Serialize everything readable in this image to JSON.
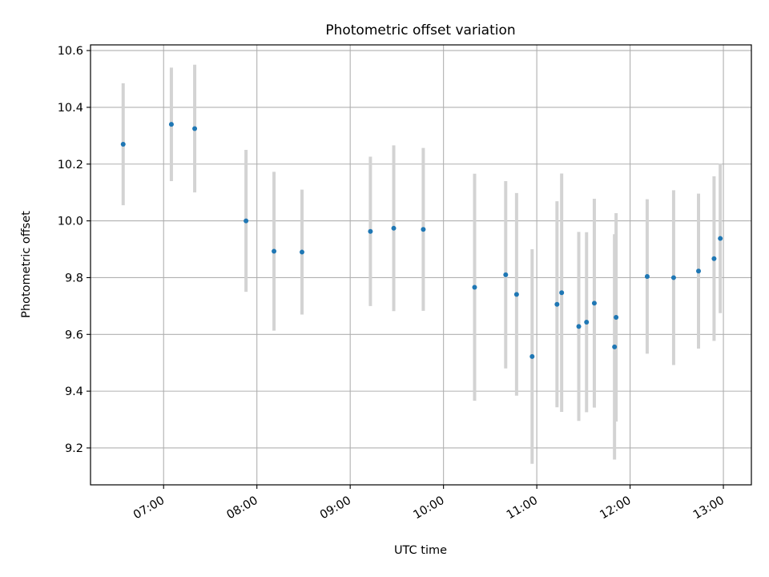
{
  "chart_data": {
    "type": "scatter",
    "title": "Photometric offset variation",
    "xlabel": "UTC time",
    "ylabel": "Photometric offset",
    "x_tick_labels": [
      "07:00",
      "08:00",
      "09:00",
      "10:00",
      "11:00",
      "12:00",
      "13:00"
    ],
    "x_tick_values": [
      "07:00",
      "08:00",
      "09:00",
      "10:00",
      "11:00",
      "12:00",
      "13:00"
    ],
    "y_tick_labels": [
      "9.2",
      "9.4",
      "9.6",
      "9.8",
      "10.0",
      "10.2",
      "10.4",
      "10.6"
    ],
    "xlim": [
      "06:13",
      "13:18"
    ],
    "ylim": [
      9.07,
      10.62
    ],
    "grid": true,
    "colors": {
      "point": "#1f77b4",
      "errorbar": "#d3d3d3",
      "grid": "#b0b0b0"
    },
    "points": [
      {
        "x": "06:34",
        "y": 10.27,
        "err": 0.215
      },
      {
        "x": "07:05",
        "y": 10.34,
        "err": 0.2
      },
      {
        "x": "07:20",
        "y": 10.325,
        "err": 0.225
      },
      {
        "x": "07:53",
        "y": 10.0,
        "err": 0.25
      },
      {
        "x": "08:11",
        "y": 9.893,
        "err": 0.28
      },
      {
        "x": "08:29",
        "y": 9.89,
        "err": 0.22
      },
      {
        "x": "09:13",
        "y": 9.963,
        "err": 0.263
      },
      {
        "x": "09:28",
        "y": 9.974,
        "err": 0.292
      },
      {
        "x": "09:47",
        "y": 9.97,
        "err": 0.287
      },
      {
        "x": "10:20",
        "y": 9.766,
        "err": 0.4
      },
      {
        "x": "10:40",
        "y": 9.81,
        "err": 0.33
      },
      {
        "x": "10:47",
        "y": 9.741,
        "err": 0.357
      },
      {
        "x": "10:57",
        "y": 9.522,
        "err": 0.378
      },
      {
        "x": "11:13",
        "y": 9.706,
        "err": 0.363
      },
      {
        "x": "11:16",
        "y": 9.747,
        "err": 0.42
      },
      {
        "x": "11:27",
        "y": 9.628,
        "err": 0.333
      },
      {
        "x": "11:32",
        "y": 9.643,
        "err": 0.317
      },
      {
        "x": "11:37",
        "y": 9.71,
        "err": 0.368
      },
      {
        "x": "11:50",
        "y": 9.556,
        "err": 0.397
      },
      {
        "x": "11:51",
        "y": 9.66,
        "err": 0.367
      },
      {
        "x": "12:11",
        "y": 9.804,
        "err": 0.272
      },
      {
        "x": "12:28",
        "y": 9.8,
        "err": 0.308
      },
      {
        "x": "12:44",
        "y": 9.823,
        "err": 0.273
      },
      {
        "x": "12:54",
        "y": 9.867,
        "err": 0.29
      },
      {
        "x": "12:58",
        "y": 9.938,
        "err": 0.263
      }
    ]
  }
}
